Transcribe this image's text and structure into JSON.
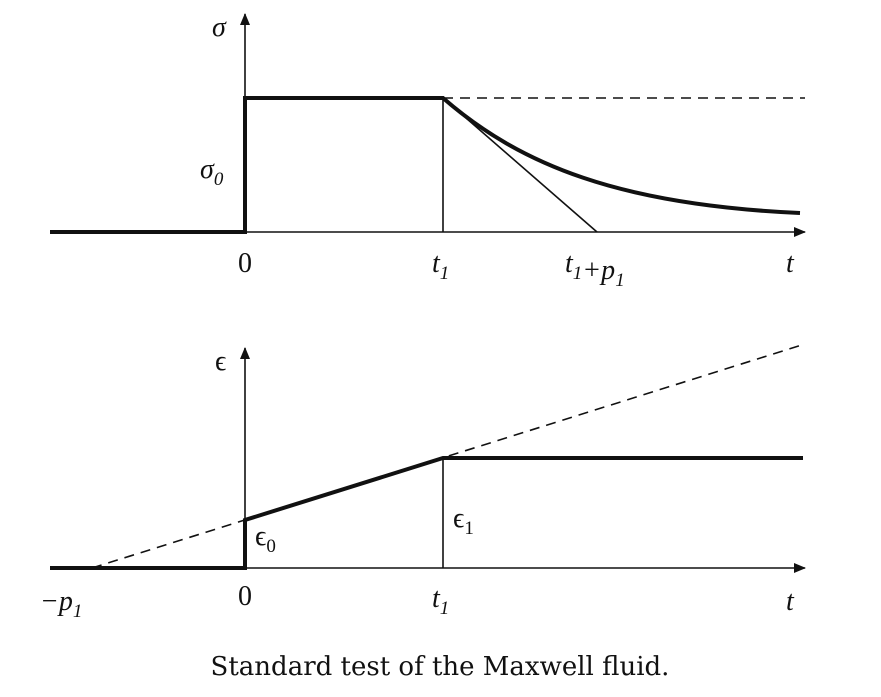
{
  "top_plot": {
    "y_axis_label": [
      {
        "text": "σ"
      }
    ],
    "level_label": [
      {
        "text": "σ",
        "sub": "0"
      }
    ],
    "x_labels": [
      [
        {
          "text": "0"
        }
      ],
      [
        {
          "text": "t",
          "sub": "1"
        }
      ],
      [
        {
          "text": "t",
          "sub": "1"
        },
        {
          "text": "+p",
          "sub": "1"
        }
      ],
      [
        {
          "text": "t"
        }
      ]
    ]
  },
  "bottom_plot": {
    "y_axis_label": [
      {
        "text": "ϵ"
      }
    ],
    "start_label": [
      {
        "text": "ϵ",
        "sub": "0"
      }
    ],
    "end_label": [
      {
        "text": "ϵ",
        "sub": "1"
      }
    ],
    "x_labels": [
      [
        {
          "text": "−p",
          "sub": "1"
        }
      ],
      [
        {
          "text": "0"
        }
      ],
      [
        {
          "text": "t",
          "sub": "1"
        }
      ],
      [
        {
          "text": "t"
        }
      ]
    ]
  },
  "caption": "Standard test of the Maxwell fluid."
}
